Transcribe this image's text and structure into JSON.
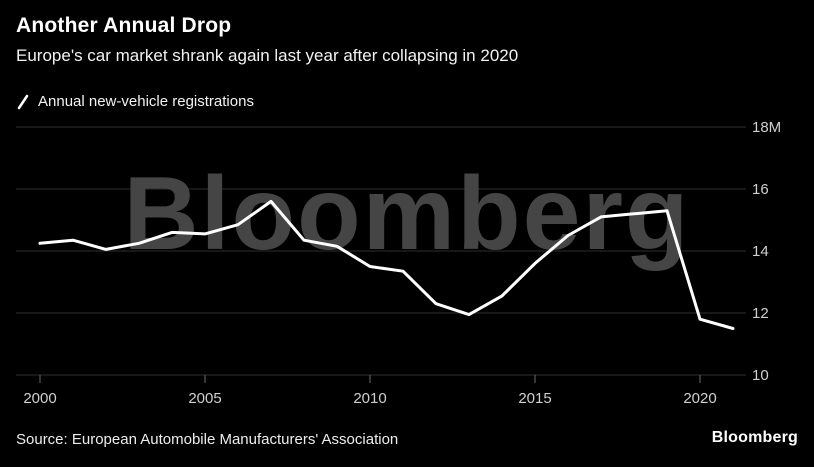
{
  "header": {
    "title": "Another Annual Drop",
    "subtitle": "Europe's car market shrank again last year after collapsing in 2020",
    "legend": "Annual new-vehicle registrations"
  },
  "watermark": "Bloomberg",
  "footer": {
    "source": "Source: European Automobile Manufacturers' Association",
    "brand": "Bloomberg"
  },
  "chart_data": {
    "type": "line",
    "title": "Another Annual Drop",
    "subtitle": "Europe's car market shrank again last year after collapsing in 2020",
    "series_name": "Annual new-vehicle registrations",
    "x": [
      2000,
      2001,
      2002,
      2003,
      2004,
      2005,
      2006,
      2007,
      2008,
      2009,
      2010,
      2011,
      2012,
      2013,
      2014,
      2015,
      2016,
      2017,
      2018,
      2019,
      2020,
      2021
    ],
    "values": [
      14.25,
      14.35,
      14.05,
      14.25,
      14.6,
      14.55,
      14.85,
      15.6,
      14.35,
      14.15,
      13.5,
      13.35,
      12.3,
      11.95,
      12.55,
      13.6,
      14.5,
      15.1,
      15.2,
      15.3,
      11.8,
      11.5
    ],
    "unit": "M",
    "ylim": [
      10,
      18
    ],
    "yticks": [
      10,
      12,
      14,
      16,
      18
    ],
    "ytick_labels": [
      "10",
      "12",
      "14",
      "16",
      "18M"
    ],
    "xticks": [
      2000,
      2005,
      2010,
      2015,
      2020
    ],
    "grid": true,
    "legend_position": "top-left",
    "line_color": "#ffffff",
    "grid_color": "#2e2e2e",
    "tick_color": "#6b6b6b",
    "label_color": "#cfcfcf",
    "background": "#000000"
  }
}
